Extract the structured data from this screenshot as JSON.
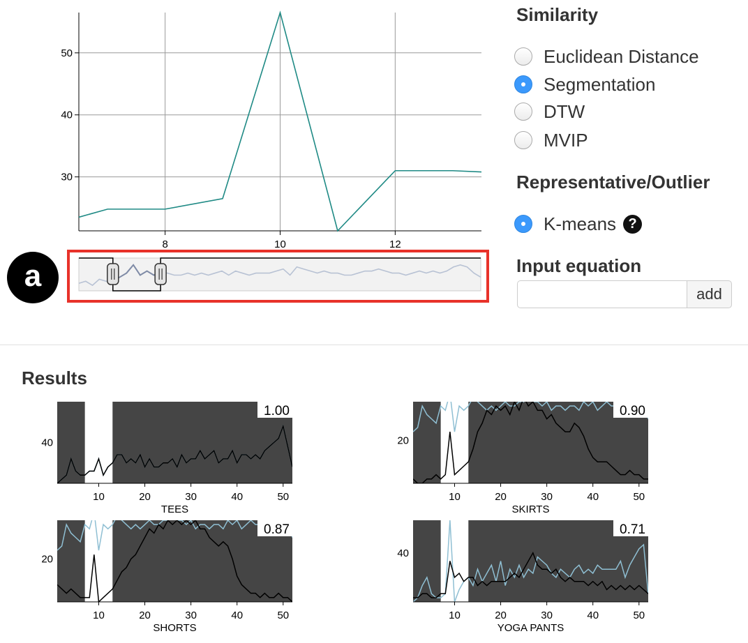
{
  "similarity": {
    "title": "Similarity",
    "options": [
      {
        "label": "Euclidean Distance",
        "checked": false
      },
      {
        "label": "Segmentation",
        "checked": true
      },
      {
        "label": "DTW",
        "checked": false
      },
      {
        "label": "MVIP",
        "checked": false
      }
    ]
  },
  "representative": {
    "title": "Representative/Outlier",
    "options": [
      {
        "label": "K-means",
        "checked": true,
        "help_icon": "?"
      }
    ]
  },
  "equation": {
    "title": "Input equation",
    "value": "",
    "placeholder": "",
    "add_label": "add"
  },
  "annotation": {
    "badge": "a"
  },
  "results": {
    "title": "Results"
  },
  "colors": {
    "main_line": "#1f8a85",
    "query_line": "#8fbfd3",
    "result_line": "#000000",
    "mask": "#454545",
    "highlight_box": "#e8322a",
    "radio_checked": "#3b99fc"
  },
  "chart_data": [
    {
      "id": "main",
      "type": "line",
      "x": [
        6.5,
        7,
        8,
        9,
        10,
        11,
        12,
        13,
        13.5
      ],
      "y": [
        23.5,
        24.8,
        24.8,
        26.5,
        56.5,
        21.3,
        31.0,
        31.0,
        30.8
      ],
      "xlim": [
        6.5,
        13.5
      ],
      "ylim": [
        21.3,
        56.5
      ],
      "xticks": [
        8,
        10,
        12
      ],
      "yticks": [
        30,
        40,
        50
      ],
      "grid": true
    },
    {
      "id": "overview",
      "type": "line",
      "values": [
        25,
        26,
        24,
        27,
        26,
        26,
        28,
        30,
        34,
        29,
        31,
        29,
        30,
        30,
        29,
        29,
        30,
        29,
        30,
        29,
        30,
        31,
        29,
        31,
        30,
        29,
        30,
        30,
        30,
        31,
        32,
        29,
        33,
        32,
        31,
        30,
        31,
        30,
        30,
        29,
        29,
        30,
        31,
        31,
        32,
        31,
        30,
        30,
        29,
        30,
        31,
        30,
        31,
        30,
        31,
        33,
        34,
        33,
        30,
        28
      ],
      "brush": {
        "x_start": 6,
        "x_end": 13
      },
      "xlim": [
        1,
        60
      ]
    },
    {
      "id": "tees",
      "type": "line",
      "label": "TEES",
      "score": "1.00",
      "xlim": [
        1,
        52
      ],
      "ylim": [
        30,
        50
      ],
      "xticks": [
        10,
        20,
        30,
        40,
        50
      ],
      "yticks": [
        40
      ],
      "unmasked": [
        7,
        13
      ],
      "query": [
        30,
        31,
        32,
        36,
        33,
        32,
        32,
        33,
        33,
        36,
        32,
        34,
        35,
        37,
        37,
        35,
        36,
        35,
        37,
        34,
        36,
        34,
        34,
        35,
        35,
        36,
        34,
        37,
        35,
        36,
        36,
        38,
        36,
        37,
        38,
        35,
        36,
        36,
        38,
        35,
        37,
        37,
        36,
        37,
        36,
        38,
        39,
        40,
        41,
        44,
        39,
        34
      ],
      "result": [
        30,
        31,
        32,
        36,
        33,
        32,
        32,
        33,
        33,
        36,
        32,
        34,
        35,
        37,
        37,
        35,
        36,
        35,
        37,
        34,
        36,
        34,
        34,
        35,
        35,
        36,
        34,
        37,
        35,
        36,
        36,
        38,
        36,
        37,
        38,
        35,
        36,
        36,
        38,
        35,
        37,
        37,
        36,
        37,
        36,
        38,
        39,
        40,
        41,
        44,
        39,
        34
      ]
    },
    {
      "id": "skirts",
      "type": "line",
      "label": "SKIRTS",
      "score": "0.90",
      "xlim": [
        1,
        52
      ],
      "ylim": [
        10,
        29
      ],
      "xticks": [
        10,
        20,
        30,
        40,
        50
      ],
      "yticks": [
        20
      ],
      "unmasked": [
        7,
        13
      ],
      "query": [
        22,
        23,
        28,
        26,
        25,
        24,
        28,
        27,
        31,
        22,
        28,
        27,
        28,
        30,
        29,
        28,
        27,
        28,
        27,
        28,
        29,
        28,
        28,
        29,
        29,
        30,
        29,
        29,
        28,
        29,
        27,
        28,
        28,
        27,
        28,
        28,
        27,
        29,
        28,
        29,
        27,
        28,
        29,
        28,
        28,
        29,
        28,
        28,
        27,
        28,
        29,
        25
      ],
      "result": [
        11,
        10,
        10,
        11,
        11,
        12,
        11,
        12,
        22,
        12,
        13,
        14,
        15,
        18,
        22,
        24,
        27,
        26,
        28,
        27,
        28,
        26,
        29,
        27,
        30,
        28,
        29,
        27,
        27,
        25,
        26,
        24,
        23,
        22,
        22,
        24,
        23,
        21,
        18,
        16,
        15,
        15,
        15,
        14,
        13,
        12,
        12,
        13,
        12,
        12,
        11,
        11
      ]
    },
    {
      "id": "shorts",
      "type": "line",
      "label": "SHORTS",
      "score": "0.87",
      "xlim": [
        1,
        52
      ],
      "ylim": [
        10,
        29
      ],
      "xticks": [
        10,
        20,
        30,
        40,
        50
      ],
      "yticks": [
        20
      ],
      "unmasked": [
        7,
        13
      ],
      "query": [
        22,
        23,
        28,
        26,
        25,
        24,
        28,
        27,
        31,
        22,
        28,
        27,
        28,
        30,
        29,
        28,
        27,
        28,
        27,
        28,
        29,
        28,
        28,
        29,
        29,
        30,
        29,
        29,
        28,
        29,
        27,
        28,
        28,
        27,
        28,
        28,
        27,
        29,
        28,
        29,
        27,
        28,
        29,
        28,
        28,
        29,
        28,
        28,
        27,
        28,
        29,
        25
      ],
      "result": [
        14,
        13,
        12,
        13,
        12,
        11,
        11,
        11,
        21,
        10,
        11,
        12,
        13,
        15,
        17,
        18,
        20,
        21,
        23,
        25,
        27,
        26,
        28,
        27,
        29,
        28,
        29,
        28,
        29,
        28,
        29,
        27,
        27,
        25,
        24,
        23,
        24,
        23,
        20,
        16,
        14,
        13,
        12,
        12,
        11,
        12,
        11,
        11,
        12,
        11,
        11,
        10
      ]
    },
    {
      "id": "yoga",
      "type": "line",
      "label": "YOGA PANTS",
      "score": "0.71",
      "xlim": [
        1,
        52
      ],
      "ylim": [
        28,
        48
      ],
      "xticks": [
        10,
        20,
        30,
        40,
        50
      ],
      "yticks": [
        40
      ],
      "unmasked": [
        7,
        13
      ],
      "query": [
        28,
        29,
        32,
        34,
        30,
        29,
        29,
        30,
        48,
        28,
        31,
        33,
        34,
        32,
        36,
        33,
        35,
        37,
        33,
        38,
        32,
        36,
        34,
        37,
        34,
        36,
        35,
        39,
        38,
        37,
        35,
        34,
        36,
        35,
        34,
        36,
        37,
        35,
        36,
        35,
        37,
        36,
        36,
        36,
        36,
        38,
        34,
        37,
        39,
        41,
        42,
        30
      ],
      "result": [
        29,
        29,
        30,
        30,
        29,
        29,
        30,
        30,
        38,
        34,
        35,
        33,
        34,
        34,
        32,
        33,
        32,
        33,
        33,
        33,
        33,
        34,
        35,
        34,
        36,
        38,
        40,
        37,
        36,
        36,
        35,
        36,
        34,
        33,
        34,
        33,
        33,
        33,
        32,
        33,
        32,
        33,
        31,
        32,
        31,
        32,
        31,
        32,
        31,
        32,
        31,
        30
      ]
    }
  ]
}
